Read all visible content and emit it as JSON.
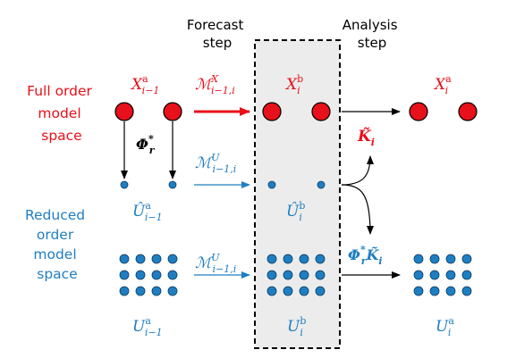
{
  "headers": {
    "forecast": [
      "Forecast",
      "step"
    ],
    "analysis": [
      "Analysis",
      "step"
    ]
  },
  "side_labels": {
    "full_order": [
      "Full order",
      "model",
      "space"
    ],
    "reduced_order": [
      "Reduced",
      "order",
      "model",
      "space"
    ]
  },
  "math": {
    "xa_prev": {
      "base": "X",
      "sup": "a",
      "sub": "i−1"
    },
    "xb": {
      "base": "X",
      "sup": "b",
      "sub": "i"
    },
    "xa": {
      "base": "X",
      "sup": "a",
      "sub": "i"
    },
    "m_x": {
      "base": "ℳ",
      "sup": "X",
      "sub": "i−1,i"
    },
    "m_u1": {
      "base": "ℳ",
      "sup": "U",
      "sub": "i−1,i"
    },
    "m_u2": {
      "base": "ℳ",
      "sup": "U",
      "sub": "i−1,i"
    },
    "phi": {
      "base": "Φ",
      "sup": "*",
      "sub": "r"
    },
    "k": {
      "base": "K̃",
      "sub": "i"
    },
    "phik": {
      "base": "Φ",
      "sup": "*",
      "sub": "r",
      "tail": "K̃",
      "tail_sub": "i"
    },
    "uhat_prev": {
      "base": "Û",
      "sup": "a",
      "sub": "i−1"
    },
    "uhat_b": {
      "base": "Û",
      "sup": "b",
      "sub": "i"
    },
    "u_prev": {
      "base": "U",
      "sup": "a",
      "sub": "i−1"
    },
    "u_b": {
      "base": "U",
      "sup": "b",
      "sub": "i"
    },
    "u_a": {
      "base": "U",
      "sup": "a",
      "sub": "i"
    }
  },
  "colors": {
    "red": "#e8101a",
    "blue": "#1f7ec2",
    "box_fill": "#ececec",
    "black": "#000000"
  }
}
